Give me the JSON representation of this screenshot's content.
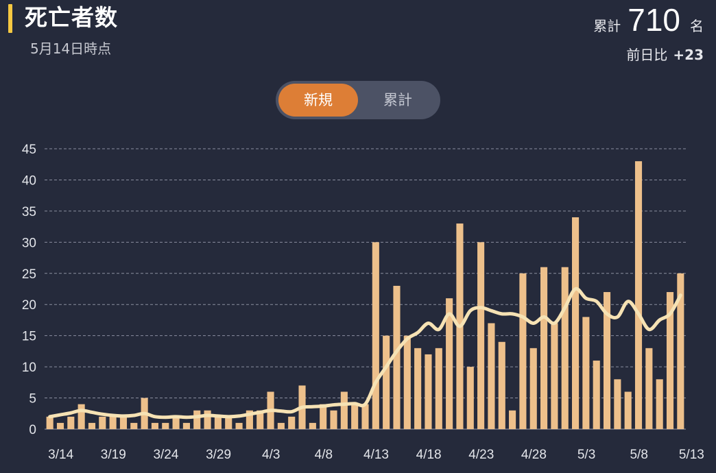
{
  "header": {
    "title": "死亡者数",
    "as_of": "5月14日時点",
    "total_label": "累計",
    "total_value": "710",
    "total_unit": "名",
    "diff_label": "前日比",
    "diff_value": "+23"
  },
  "toggle": {
    "options": [
      "新規",
      "累計"
    ],
    "selected": "新規"
  },
  "colors": {
    "background": "#252a3b",
    "bar": "#edc08b",
    "line": "#f6e2b4",
    "toggle_active": "#dd7e36",
    "title_accent": "#f5c842"
  },
  "chart_data": {
    "type": "bar",
    "x_start": "3/14",
    "x_end": "5/13",
    "x": [
      "3/14",
      "3/15",
      "3/16",
      "3/17",
      "3/18",
      "3/19",
      "3/20",
      "3/21",
      "3/22",
      "3/23",
      "3/24",
      "3/25",
      "3/26",
      "3/27",
      "3/28",
      "3/29",
      "3/30",
      "3/31",
      "4/1",
      "4/2",
      "4/3",
      "4/4",
      "4/5",
      "4/6",
      "4/7",
      "4/8",
      "4/9",
      "4/10",
      "4/11",
      "4/12",
      "4/13",
      "4/14",
      "4/15",
      "4/16",
      "4/17",
      "4/18",
      "4/19",
      "4/20",
      "4/21",
      "4/22",
      "4/23",
      "4/24",
      "4/25",
      "4/26",
      "4/27",
      "4/28",
      "4/29",
      "4/30",
      "5/1",
      "5/2",
      "5/3",
      "5/4",
      "5/5",
      "5/6",
      "5/7",
      "5/8",
      "5/9",
      "5/10",
      "5/11",
      "5/12",
      "5/13"
    ],
    "series": [
      {
        "type": "bar",
        "values": [
          2,
          1,
          2,
          4,
          1,
          2,
          2,
          2,
          1,
          5,
          1,
          1,
          2,
          1,
          3,
          3,
          2,
          2,
          1,
          3,
          3,
          6,
          1,
          2,
          7,
          1,
          4,
          3,
          6,
          4,
          4,
          30,
          15,
          23,
          15,
          13,
          12,
          13,
          21,
          33,
          10,
          30,
          17,
          14,
          3,
          25,
          13,
          26,
          17,
          26,
          34,
          18,
          11,
          22,
          8,
          6,
          43,
          13,
          8,
          22,
          25
        ]
      },
      {
        "type": "line",
        "values": [
          2,
          2.3,
          2.6,
          3,
          2.7,
          2.4,
          2.2,
          2.1,
          2.2,
          2.5,
          2,
          1.9,
          2,
          1.9,
          2,
          2.2,
          2.1,
          2,
          2.1,
          2.4,
          2.7,
          3,
          2.9,
          2.8,
          3.5,
          3.6,
          3.7,
          3.9,
          4,
          4.1,
          4,
          7.5,
          10,
          12.5,
          14.5,
          15.5,
          17,
          16,
          18.5,
          16.5,
          19,
          19.5,
          19,
          18.5,
          18.5,
          18,
          17,
          18,
          17,
          19.5,
          22.5,
          21,
          20.5,
          18.5,
          18,
          20.5,
          18.5,
          16,
          17.5,
          18.5,
          21.5
        ]
      }
    ],
    "xticks": [
      "3/14",
      "3/19",
      "3/24",
      "3/29",
      "4/3",
      "4/8",
      "4/13",
      "4/18",
      "4/23",
      "4/28",
      "5/3",
      "5/8",
      "5/13"
    ],
    "yticks": [
      0,
      5,
      10,
      15,
      20,
      25,
      30,
      35,
      40,
      45
    ],
    "ylim": [
      0,
      45
    ],
    "grid": true
  }
}
